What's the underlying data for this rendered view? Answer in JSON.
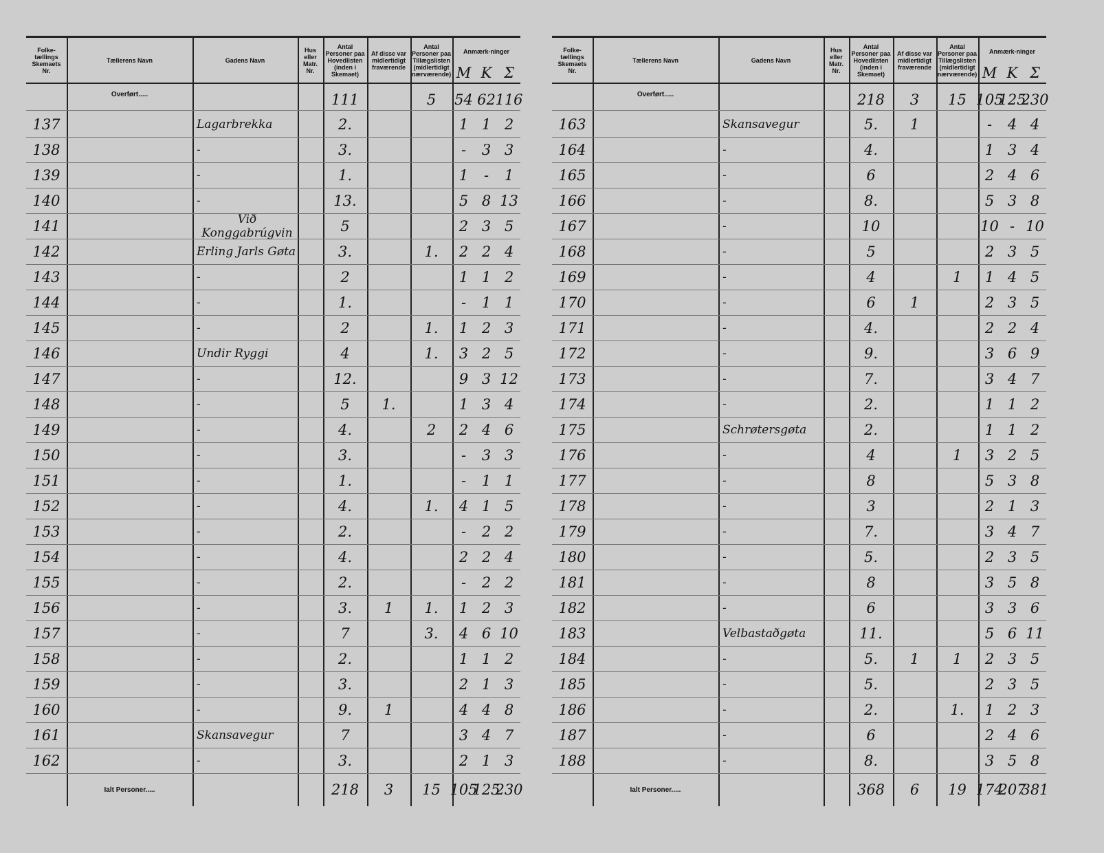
{
  "pages": [
    {
      "headers": [
        "Folke-tællings Skemaets Nr.",
        "Tællerens Navn",
        "Gadens Navn",
        "Hus eller Matr. Nr.",
        "Antal Personer paa Hovedlisten (inden i Skemaet)",
        "Af disse var midlertidigt fraværende",
        "Antal Personer paa Tillægslisten (midlertidigt nærværende)",
        "Anmærk-ninger"
      ],
      "mks": [
        "M",
        "K",
        "Σ"
      ],
      "carried": {
        "label": "Overført.....",
        "values": [
          "111",
          null,
          "5",
          "54",
          "62",
          "116"
        ]
      },
      "rows": [
        [
          "137",
          "Lagarbrekka",
          "2.",
          null,
          null,
          "1",
          "1",
          "2"
        ],
        [
          "138",
          "-",
          "3.",
          null,
          null,
          "-",
          "3",
          "3"
        ],
        [
          "139",
          "-",
          "1.",
          null,
          null,
          "1",
          "-",
          "1"
        ],
        [
          "140",
          "-",
          "13.",
          null,
          null,
          "5",
          "8",
          "13"
        ],
        [
          "141",
          "Við Konggabrúgvin",
          "5",
          null,
          null,
          "2",
          "3",
          "5"
        ],
        [
          "142",
          "Erling Jarls Gøta",
          "3.",
          null,
          "1.",
          "2",
          "2",
          "4"
        ],
        [
          "143",
          "-",
          "2",
          null,
          null,
          "1",
          "1",
          "2"
        ],
        [
          "144",
          "-",
          "1.",
          null,
          null,
          "-",
          "1",
          "1"
        ],
        [
          "145",
          "-",
          "2",
          null,
          "1.",
          "1",
          "2",
          "3"
        ],
        [
          "146",
          "Undir Ryggi",
          "4",
          null,
          "1.",
          "3",
          "2",
          "5"
        ],
        [
          "147",
          "-",
          "12.",
          null,
          null,
          "9",
          "3",
          "12"
        ],
        [
          "148",
          "-",
          "5",
          "1.",
          null,
          "1",
          "3",
          "4"
        ],
        [
          "149",
          "-",
          "4.",
          null,
          "2",
          "2",
          "4",
          "6"
        ],
        [
          "150",
          "-",
          "3.",
          null,
          null,
          "-",
          "3",
          "3"
        ],
        [
          "151",
          "-",
          "1.",
          null,
          null,
          "-",
          "1",
          "1"
        ],
        [
          "152",
          "-",
          "4.",
          null,
          "1.",
          "4",
          "1",
          "5"
        ],
        [
          "153",
          "-",
          "2.",
          null,
          null,
          "-",
          "2",
          "2"
        ],
        [
          "154",
          "-",
          "4.",
          null,
          null,
          "2",
          "2",
          "4"
        ],
        [
          "155",
          "-",
          "2.",
          null,
          null,
          "-",
          "2",
          "2"
        ],
        [
          "156",
          "-",
          "3.",
          "1",
          "1.",
          "1",
          "2",
          "3"
        ],
        [
          "157",
          "-",
          "7",
          null,
          "3.",
          "4",
          "6",
          "10"
        ],
        [
          "158",
          "-",
          "2.",
          null,
          null,
          "1",
          "1",
          "2"
        ],
        [
          "159",
          "-",
          "3.",
          null,
          null,
          "2",
          "1",
          "3"
        ],
        [
          "160",
          "-",
          "9.",
          "1",
          null,
          "4",
          "4",
          "8"
        ],
        [
          "161",
          "Skansavegur",
          "7",
          null,
          null,
          "3",
          "4",
          "7"
        ],
        [
          "162",
          "-",
          "3.",
          null,
          null,
          "2",
          "1",
          "3"
        ]
      ],
      "total": {
        "label": "Ialt Personer.....",
        "values": [
          "218",
          "3",
          "15",
          "105",
          "125",
          "230"
        ]
      }
    },
    {
      "headers": [
        "Folke-tællings Skemaets Nr.",
        "Tællerens Navn",
        "Gadens Navn",
        "Hus eller Matr. Nr.",
        "Antal Personer paa Hovedlisten (inden i Skemaet)",
        "Af disse var midlertidigt fraværende",
        "Antal Personer paa Tillægslisten (midlertidigt nærværende)",
        "Anmærk-ninger"
      ],
      "mks": [
        "M",
        "K",
        "Σ"
      ],
      "carried": {
        "label": "Overført.....",
        "values": [
          "218",
          "3",
          "15",
          "105",
          "125",
          "230"
        ]
      },
      "rows": [
        [
          "163",
          "Skansavegur",
          "5.",
          "1",
          null,
          "-",
          "4",
          "4"
        ],
        [
          "164",
          "-",
          "4.",
          null,
          null,
          "1",
          "3",
          "4"
        ],
        [
          "165",
          "-",
          "6",
          null,
          null,
          "2",
          "4",
          "6"
        ],
        [
          "166",
          "-",
          "8.",
          null,
          null,
          "5",
          "3",
          "8"
        ],
        [
          "167",
          "-",
          "10",
          null,
          null,
          "10",
          "-",
          "10"
        ],
        [
          "168",
          "-",
          "5",
          null,
          null,
          "2",
          "3",
          "5"
        ],
        [
          "169",
          "-",
          "4",
          null,
          "1",
          "1",
          "4",
          "5"
        ],
        [
          "170",
          "-",
          "6",
          "1",
          null,
          "2",
          "3",
          "5"
        ],
        [
          "171",
          "-",
          "4.",
          null,
          null,
          "2",
          "2",
          "4"
        ],
        [
          "172",
          "-",
          "9.",
          null,
          null,
          "3",
          "6",
          "9"
        ],
        [
          "173",
          "-",
          "7.",
          null,
          null,
          "3",
          "4",
          "7"
        ],
        [
          "174",
          "-",
          "2.",
          null,
          null,
          "1",
          "1",
          "2"
        ],
        [
          "175",
          "Schrøtersgøta",
          "2.",
          null,
          null,
          "1",
          "1",
          "2"
        ],
        [
          "176",
          "-",
          "4",
          null,
          "1",
          "3",
          "2",
          "5"
        ],
        [
          "177",
          "-",
          "8",
          null,
          null,
          "5",
          "3",
          "8"
        ],
        [
          "178",
          "-",
          "3",
          null,
          null,
          "2",
          "1",
          "3"
        ],
        [
          "179",
          "-",
          "7.",
          null,
          null,
          "3",
          "4",
          "7"
        ],
        [
          "180",
          "-",
          "5.",
          null,
          null,
          "2",
          "3",
          "5"
        ],
        [
          "181",
          "-",
          "8",
          null,
          null,
          "3",
          "5",
          "8"
        ],
        [
          "182",
          "-",
          "6",
          null,
          null,
          "3",
          "3",
          "6"
        ],
        [
          "183",
          "Velbastaðgøta",
          "11.",
          null,
          null,
          "5",
          "6",
          "11"
        ],
        [
          "184",
          "-",
          "5.",
          "1",
          "1",
          "2",
          "3",
          "5"
        ],
        [
          "185",
          "-",
          "5.",
          null,
          null,
          "2",
          "3",
          "5"
        ],
        [
          "186",
          "-",
          "2.",
          null,
          "1.",
          "1",
          "2",
          "3"
        ],
        [
          "187",
          "-",
          "6",
          null,
          null,
          "2",
          "4",
          "6"
        ],
        [
          "188",
          "-",
          "8.",
          null,
          null,
          "3",
          "5",
          "8"
        ]
      ],
      "total": {
        "label": "Ialt Personer.....",
        "values": [
          "368",
          "6",
          "19",
          "174",
          "207",
          "381"
        ]
      }
    }
  ]
}
